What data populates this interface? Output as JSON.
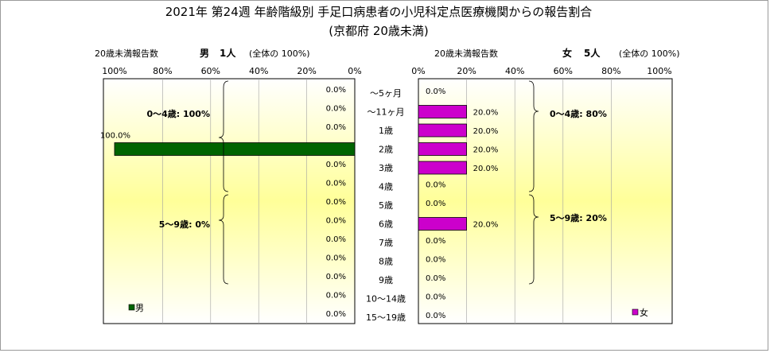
{
  "title_line1": "2021年 第24週 年齢階級別 手足口病患者の小児科定点医療機関からの報告割合",
  "title_line2": "(京都府 20歳未満)",
  "axis_label": "20歳未満報告数",
  "male": {
    "header_sex": "男",
    "header_count": "1人",
    "header_total": "(全体の 100%)",
    "legend": "男",
    "color": "#006400",
    "group_labels": [
      "0～4歳: 100%",
      "5～9歳: 0%"
    ]
  },
  "female": {
    "header_sex": "女",
    "header_count": "5人",
    "header_total": "(全体の 100%)",
    "legend": "女",
    "color": "#cc00cc",
    "group_labels": [
      "0～4歳: 80%",
      "5～9歳: 20%"
    ]
  },
  "chart_data": {
    "type": "bar",
    "orientation": "horizontal",
    "layout": "population-pyramid",
    "categories": [
      "～5ヶ月",
      "～11ヶ月",
      "1歳",
      "2歳",
      "3歳",
      "4歳",
      "5歳",
      "6歳",
      "7歳",
      "8歳",
      "9歳",
      "10～14歳",
      "15～19歳"
    ],
    "series": [
      {
        "name": "男",
        "values": [
          0,
          0,
          0,
          100,
          0,
          0,
          0,
          0,
          0,
          0,
          0,
          0,
          0
        ]
      },
      {
        "name": "女",
        "values": [
          0,
          20,
          20,
          20,
          20,
          0,
          0,
          20,
          0,
          0,
          0,
          0,
          0
        ]
      }
    ],
    "tick_labels": [
      "0%",
      "20%",
      "40%",
      "60%",
      "80%",
      "100%"
    ],
    "xlim": [
      0,
      100
    ],
    "grid": true
  }
}
